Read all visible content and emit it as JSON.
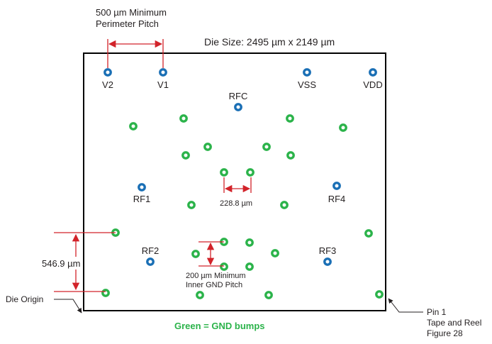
{
  "die_size_label": "Die Size: 2495 µm x 2149 µm",
  "perimeter_pitch": {
    "line1": "500 µm Minimum",
    "line2": "Perimeter Pitch"
  },
  "pads": [
    {
      "id": "pad-v2",
      "label": "V2"
    },
    {
      "id": "pad-v1",
      "label": "V1"
    },
    {
      "id": "pad-vss",
      "label": "VSS"
    },
    {
      "id": "pad-vdd",
      "label": "VDD"
    },
    {
      "id": "pad-rfc",
      "label": "RFC"
    },
    {
      "id": "pad-rf1",
      "label": "RF1"
    },
    {
      "id": "pad-rf4",
      "label": "RF4"
    },
    {
      "id": "pad-rf2",
      "label": "RF2"
    },
    {
      "id": "pad-rf3",
      "label": "RF3"
    }
  ],
  "inner_pitch_label": "228.8 µm",
  "vertical_pitch_label": "546.9 µm",
  "inner_gnd_pitch": {
    "line1": "200 µm Minimum",
    "line2": "Inner GND Pitch"
  },
  "die_origin_label": "Die Origin",
  "pin1": {
    "line1": "Pin 1",
    "line2": "Tape and Reel",
    "line3": "Figure 28"
  },
  "legend_label": "Green = GND bumps",
  "colors": {
    "signal_bump": "#1a6fb5",
    "gnd_bump": "#2bb34a",
    "dimension": "#d2232a",
    "outline": "#000000",
    "legend_text": "#2bb34a"
  }
}
